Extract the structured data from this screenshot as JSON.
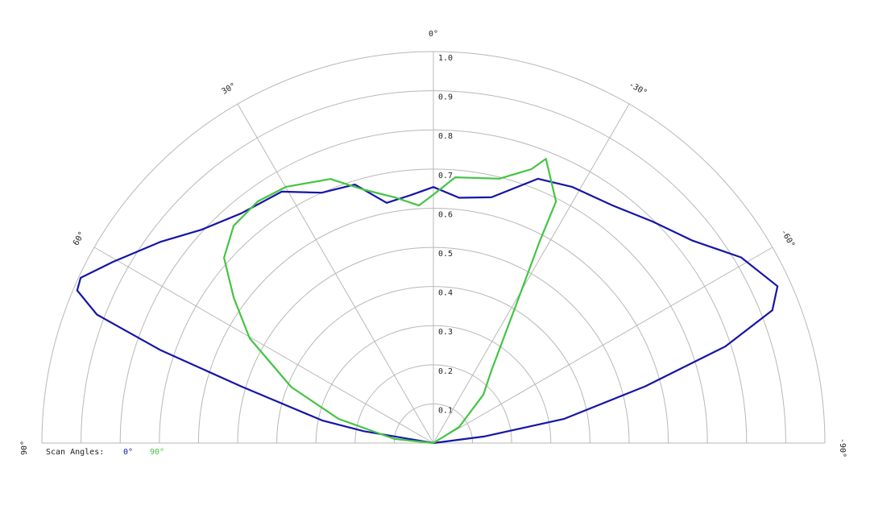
{
  "chart_data": {
    "type": "polar",
    "xlim": [
      90,
      -90
    ],
    "xticks": [
      {
        "value": 90,
        "label": "90°"
      },
      {
        "value": 60,
        "label": "60°"
      },
      {
        "value": 30,
        "label": "30°"
      },
      {
        "value": 0,
        "label": "0°"
      },
      {
        "value": -30,
        "label": "-30°"
      },
      {
        "value": -60,
        "label": "-60°"
      },
      {
        "value": -90,
        "label": "-90°"
      }
    ],
    "ylim": [
      0,
      1
    ],
    "yticks": [
      0.1,
      0.2,
      0.3,
      0.4,
      0.5,
      0.6,
      0.7,
      0.8,
      0.9,
      {
        "value": 1,
        "label": "1.0"
      }
    ],
    "grid": true,
    "legend_title": "Scan Angles:",
    "series": [
      {
        "name": "0°",
        "color": "#1515a8",
        "x": [
          90,
          80.3,
          78.5,
          73.6,
          71.2,
          69.1,
          66.8,
          64.9,
          60.5,
          53.5,
          47.4,
          39.9,
          31.1,
          24,
          16.9,
          11,
          5.2,
          0,
          -6,
          -13.3,
          -21.6,
          -28.4,
          -37,
          -44.7,
          -52,
          -58.9,
          -65.5,
          -68.6,
          -71.7,
          -75,
          -79.5,
          -82.6,
          -90
        ],
        "values": [
          0,
          0.18,
          0.29,
          0.51,
          0.735,
          0.92,
          0.99,
          0.995,
          0.94,
          0.865,
          0.805,
          0.765,
          0.75,
          0.7,
          0.69,
          0.625,
          0.636,
          0.654,
          0.63,
          0.645,
          0.726,
          0.744,
          0.76,
          0.796,
          0.84,
          0.918,
          0.966,
          0.93,
          0.785,
          0.56,
          0.34,
          0.13,
          0
        ]
      },
      {
        "name": "90°",
        "color": "#44c444",
        "x": [
          90,
          84,
          75.7,
          68.5,
          60.3,
          54,
          48.5,
          42.6,
          36,
          29.9,
          21.3,
          15.6,
          8.9,
          3.5,
          -0.4,
          -4.7,
          -14,
          -19.7,
          -21.6,
          -26.9,
          -27.8,
          -31,
          -38.7,
          -45.9,
          -58,
          -90
        ],
        "values": [
          0,
          0.1,
          0.25,
          0.39,
          0.54,
          0.63,
          0.714,
          0.754,
          0.763,
          0.755,
          0.724,
          0.673,
          0.635,
          0.608,
          0.638,
          0.681,
          0.696,
          0.743,
          0.781,
          0.692,
          0.582,
          0.408,
          0.237,
          0.178,
          0.078,
          0
        ]
      }
    ]
  }
}
